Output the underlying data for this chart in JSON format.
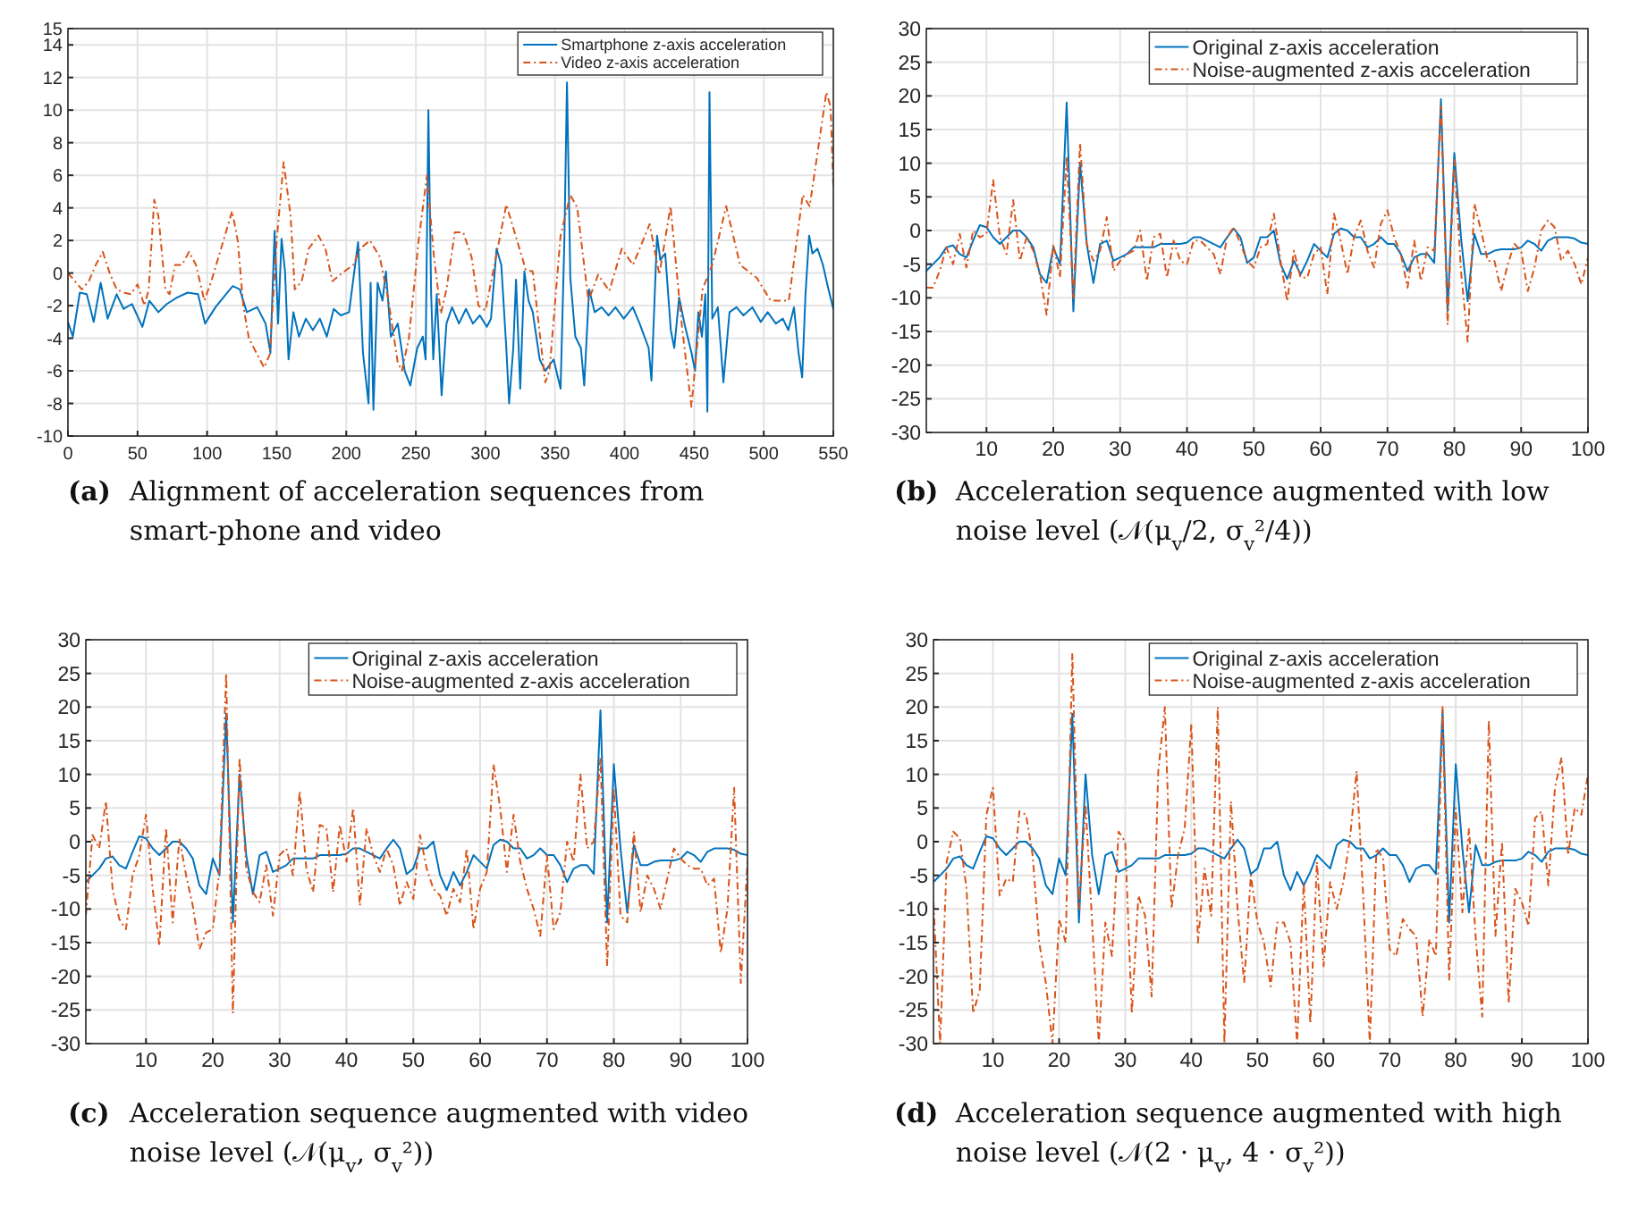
{
  "chart_data": [
    {
      "type": "line",
      "xlim": [
        0,
        550
      ],
      "xticks": [
        0,
        50,
        100,
        150,
        200,
        250,
        300,
        350,
        400,
        450,
        500,
        550
      ],
      "ylim": [
        -10,
        15
      ],
      "yticks": [
        -10,
        -8,
        -6,
        -4,
        -2,
        0,
        2,
        4,
        6,
        8,
        10,
        12,
        14,
        15
      ],
      "grid": true,
      "legend": "top right",
      "annotations": [
        "(a) Alignment of acceleration sequences from smart-phone and video"
      ],
      "series": [
        {
          "name": "Smartphone z-axis acceleration",
          "color": "#0072bd",
          "line_style": "solid",
          "x": [
            0,
            3.5,
            8.5,
            13.5,
            18.5,
            23.5,
            28.5,
            35,
            40,
            46,
            53.5,
            58.5,
            65,
            71,
            78.5,
            86,
            93.5,
            98.5,
            106,
            113.5,
            118.5,
            123.5,
            128.5,
            136,
            142,
            145.5,
            148.5,
            151,
            153.5,
            156,
            158.5,
            162,
            166,
            171,
            176,
            181,
            186,
            191,
            196,
            202,
            208.5,
            212,
            216,
            217.5,
            219.5,
            222.5,
            226,
            228.5,
            232,
            237,
            242,
            246,
            251,
            255,
            257,
            259,
            261,
            262.5,
            265,
            268.5,
            272,
            276,
            281,
            286,
            291,
            296,
            301,
            304,
            308,
            311.4,
            315,
            317,
            320,
            322,
            325,
            328,
            331,
            334,
            339,
            343,
            349,
            354,
            356.7,
            358.6,
            361,
            364.6,
            368.6,
            371,
            374.5,
            378.5,
            383.5,
            388.5,
            393.4,
            399.4,
            405.9,
            410.8,
            417.3,
            419.3,
            423.3,
            425.7,
            429.2,
            433.2,
            435.7,
            439.2,
            443,
            448.1,
            450.6,
            453,
            455.6,
            458,
            459.5,
            461,
            463,
            467,
            471,
            475.4,
            480.4,
            485.4,
            491.8,
            497.8,
            502.8,
            508.7,
            513.7,
            517.7,
            521.7,
            525,
            527.6,
            530,
            532.6,
            535,
            538.6,
            542.5,
            546.5,
            550
          ],
          "values": [
            -3,
            -3.9,
            -1.2,
            -1.3,
            -3,
            -0.6,
            -2.8,
            -1.3,
            -2.2,
            -1.9,
            -3.3,
            -1.7,
            -2.4,
            -1.9,
            -1.5,
            -1.2,
            -1.3,
            -3.1,
            -2.1,
            -1.3,
            -0.8,
            -1,
            -2.4,
            -2.1,
            -3.1,
            -4.9,
            2.6,
            -3.1,
            2.1,
            0.1,
            -5.3,
            -2.4,
            -3.9,
            -2.8,
            -3.5,
            -2.8,
            -3.9,
            -2.2,
            -2.6,
            -2.4,
            1.9,
            -4.9,
            -8,
            -0.6,
            -8.4,
            -0.6,
            -1.7,
            0.1,
            -3.9,
            -3.1,
            -6,
            -6.9,
            -4.6,
            -3.9,
            -5.3,
            10,
            -1.3,
            -5.3,
            -1.3,
            -7.5,
            -3.1,
            -2.1,
            -3.1,
            -2.2,
            -3.1,
            -2.6,
            -3.3,
            -2.8,
            1.5,
            0.5,
            -4.6,
            -8,
            -4.6,
            -0.4,
            -7.1,
            0.1,
            -1.7,
            -2.4,
            -5.3,
            -6,
            -5.3,
            -7.1,
            1.9,
            11.7,
            -0.3,
            -3.9,
            -4.6,
            -6.9,
            -1,
            -2.4,
            -2.1,
            -2.6,
            -2.1,
            -2.8,
            -2.1,
            -3.1,
            -4.6,
            -6.6,
            2.3,
            0.8,
            1.2,
            -3.5,
            -4.6,
            -1.5,
            -3.1,
            -4.9,
            -6,
            -2.4,
            -3.9,
            -1.3,
            -8.5,
            11.1,
            -2.8,
            -2.1,
            -6.7,
            -2.4,
            -2.1,
            -2.6,
            -2.1,
            -3,
            -2.4,
            -3.1,
            -2.8,
            -3.5,
            -2.1,
            -4.9,
            -6.4,
            -1.3,
            2.3,
            1.2,
            1.5,
            0.5,
            -1,
            -2.2
          ]
        },
        {
          "name": "Video z-axis acceleration",
          "color": "#d95319",
          "line_style": "dashed",
          "x": [
            0,
            5,
            10,
            15,
            20,
            25,
            30,
            35,
            40,
            45,
            50,
            55,
            58,
            62,
            65,
            70,
            73,
            77,
            82,
            87,
            92,
            98,
            103,
            110,
            118,
            122,
            126,
            130,
            136,
            141,
            145,
            150,
            155,
            160,
            163,
            168,
            173,
            180,
            185,
            190,
            197,
            205,
            210,
            217,
            224,
            230,
            237,
            240,
            245,
            252,
            258,
            263,
            268,
            272,
            278,
            284,
            290,
            295,
            300,
            315,
            329,
            334,
            343,
            346,
            354,
            361,
            366,
            374,
            381,
            389,
            398,
            406,
            418,
            425,
            433,
            441,
            448,
            456,
            463,
            473,
            483,
            495,
            505,
            518,
            528,
            533,
            538,
            545,
            548,
            550
          ],
          "values": [
            0,
            -0.5,
            -1,
            -0.5,
            0.5,
            1.3,
            0,
            -1,
            -1.2,
            -1.3,
            -0.7,
            -2,
            -1,
            4.5,
            3.5,
            -1,
            -1.3,
            0.5,
            0.5,
            1.3,
            0.5,
            -1.7,
            -0.5,
            1.5,
            3.8,
            2,
            -2,
            -4,
            -5,
            -5.8,
            -5,
            2,
            6.8,
            3.5,
            -1,
            -0.5,
            1.5,
            2.3,
            1.5,
            -0.5,
            0,
            0.5,
            1.5,
            2,
            1,
            -1.5,
            -5.5,
            -6,
            -4,
            2,
            6,
            1,
            -2.5,
            -1,
            2.5,
            2.5,
            1,
            -2,
            -2.3,
            4.2,
            0.2,
            0.1,
            -6.7,
            -6,
            2.3,
            4.8,
            4,
            -1.7,
            -0.1,
            -1.1,
            1.5,
            0.5,
            3,
            -0.1,
            4.1,
            -3.1,
            -8.2,
            -1,
            0.5,
            4.1,
            0.5,
            -0.3,
            -1.7,
            -1.7,
            4.8,
            4.1,
            7,
            11.1,
            10.2,
            5.3
          ]
        }
      ]
    },
    {
      "type": "line",
      "x": [
        1,
        2,
        3,
        4,
        5,
        6,
        7,
        8,
        9,
        10,
        11,
        12,
        13,
        14,
        15,
        16,
        17,
        18,
        19,
        20,
        21,
        22,
        23,
        24,
        25,
        26,
        27,
        28,
        29,
        30,
        31,
        32,
        33,
        34,
        35,
        36,
        37,
        38,
        39,
        40,
        41,
        42,
        43,
        44,
        45,
        46,
        47,
        48,
        49,
        50,
        51,
        52,
        53,
        54,
        55,
        56,
        57,
        58,
        59,
        60,
        61,
        62,
        63,
        64,
        65,
        66,
        67,
        68,
        69,
        70,
        71,
        72,
        73,
        74,
        75,
        76,
        77,
        78,
        79,
        80,
        81,
        82,
        83,
        84,
        85,
        86,
        87,
        88,
        89,
        90,
        91,
        92,
        93,
        94,
        95,
        96,
        97,
        98,
        99,
        100
      ],
      "xlim": [
        1,
        100
      ],
      "xticks": [
        10,
        20,
        30,
        40,
        50,
        60,
        70,
        80,
        90,
        100
      ],
      "ylim": [
        -30,
        30
      ],
      "yticks": [
        -30,
        -25,
        -20,
        -15,
        -10,
        -5,
        0,
        5,
        10,
        15,
        20,
        25,
        30
      ],
      "grid": true,
      "legend": "top right",
      "annotations": [
        "(b) Acceleration sequence augmented with low noise level (𝒩(μ$_{v}$/2, σ$_{v}$²/4))"
      ],
      "series": [
        {
          "name": "Original z-axis acceleration",
          "color": "#0072bd",
          "line_style": "solid",
          "values": [
            -6,
            -5,
            -4,
            -2.5,
            -2.2,
            -3.5,
            -4,
            -1.5,
            0.8,
            0.5,
            -1,
            -2,
            -1,
            0,
            0,
            -1,
            -2.5,
            -6.5,
            -7.8,
            -2.5,
            -5,
            19,
            -12,
            10,
            -2,
            -7.8,
            -2,
            -1.5,
            -4.5,
            -4,
            -3.5,
            -2.5,
            -2.5,
            -2.5,
            -2.5,
            -2,
            -2,
            -2,
            -2,
            -1.8,
            -1,
            -1,
            -1.5,
            -2,
            -2.5,
            -1,
            0.3,
            -1,
            -4.8,
            -4,
            -1,
            -1,
            0,
            -5,
            -7.2,
            -4.5,
            -6.5,
            -4.5,
            -2,
            -3,
            -4,
            -0.5,
            0.3,
            0,
            -1,
            -1,
            -2.5,
            -2,
            -1,
            -2,
            -2,
            -3.5,
            -6,
            -4,
            -3.5,
            -3.5,
            -4.8,
            19.5,
            -12,
            11.5,
            -1,
            -10.5,
            -0.5,
            -3.5,
            -3.5,
            -3,
            -2.8,
            -2.8,
            -2.8,
            -2.5,
            -1.5,
            -2,
            -3,
            -1.5,
            -1,
            -1,
            -1,
            -1.2,
            -1.8,
            -2
          ]
        },
        {
          "name": "Noise-augmented z-axis acceleration",
          "color": "#d95319",
          "line_style": "dashed",
          "values": [
            -8.5,
            -8.5,
            -6,
            -2.5,
            -5,
            -0.5,
            -5.5,
            0,
            -1,
            -0.5,
            7.5,
            -1,
            -3.5,
            4.5,
            -4.5,
            -1,
            -3,
            -6.5,
            -12.5,
            -2,
            -7,
            11,
            -10,
            13,
            -2,
            -4.5,
            -3,
            2,
            -6,
            -4.5,
            -3.5,
            -3,
            0,
            -7.5,
            -1,
            -0.5,
            -7,
            -1.5,
            -4.5,
            -5,
            -1.5,
            -1.5,
            -2.5,
            -3.5,
            -6.5,
            -1,
            0.5,
            -2,
            -4.5,
            -5.5,
            -2.5,
            -2,
            2.5,
            -4.5,
            -10.5,
            -3,
            -7,
            -7,
            -3.5,
            -2.5,
            -9.5,
            2.5,
            -1.5,
            -6.5,
            -1,
            1.5,
            -3,
            -5.5,
            1,
            3,
            -1,
            -3.5,
            -8.5,
            -1.5,
            -7.5,
            -2.5,
            -3,
            18.5,
            -14,
            10.5,
            -6,
            -16.5,
            4,
            0,
            -4.5,
            -4.5,
            -9,
            -5,
            -2,
            -3,
            -9,
            -5.5,
            0,
            1.5,
            0.5,
            -4.5,
            -3,
            -5,
            -8,
            -4
          ]
        }
      ]
    },
    {
      "type": "line",
      "x": [
        1,
        2,
        3,
        4,
        5,
        6,
        7,
        8,
        9,
        10,
        11,
        12,
        13,
        14,
        15,
        16,
        17,
        18,
        19,
        20,
        21,
        22,
        23,
        24,
        25,
        26,
        27,
        28,
        29,
        30,
        31,
        32,
        33,
        34,
        35,
        36,
        37,
        38,
        39,
        40,
        41,
        42,
        43,
        44,
        45,
        46,
        47,
        48,
        49,
        50,
        51,
        52,
        53,
        54,
        55,
        56,
        57,
        58,
        59,
        60,
        61,
        62,
        63,
        64,
        65,
        66,
        67,
        68,
        69,
        70,
        71,
        72,
        73,
        74,
        75,
        76,
        77,
        78,
        79,
        80,
        81,
        82,
        83,
        84,
        85,
        86,
        87,
        88,
        89,
        90,
        91,
        92,
        93,
        94,
        95,
        96,
        97,
        98,
        99,
        100
      ],
      "xlim": [
        1,
        100
      ],
      "xticks": [
        10,
        20,
        30,
        40,
        50,
        60,
        70,
        80,
        90,
        100
      ],
      "ylim": [
        -30,
        30
      ],
      "yticks": [
        -30,
        -25,
        -20,
        -15,
        -10,
        -5,
        0,
        5,
        10,
        15,
        20,
        25,
        30
      ],
      "grid": true,
      "legend": "top right",
      "annotations": [
        "(c) Acceleration sequence augmented with video noise level (𝒩(μ$_{v}$, σ$_{v}$²))"
      ],
      "series": [
        {
          "name": "Original z-axis acceleration",
          "color": "#0072bd",
          "line_style": "solid",
          "values": [
            -6,
            -5,
            -4,
            -2.5,
            -2.2,
            -3.5,
            -4,
            -1.5,
            0.8,
            0.5,
            -1,
            -2,
            -1,
            0,
            0,
            -1,
            -2.5,
            -6.5,
            -7.8,
            -2.5,
            -5,
            19,
            -12,
            10,
            -2,
            -7.8,
            -2,
            -1.5,
            -4.5,
            -4,
            -3.5,
            -2.5,
            -2.5,
            -2.5,
            -2.5,
            -2,
            -2,
            -2,
            -2,
            -1.8,
            -1,
            -1,
            -1.5,
            -2,
            -2.5,
            -1,
            0.3,
            -1,
            -4.8,
            -4,
            -1,
            -1,
            0,
            -5,
            -7.2,
            -4.5,
            -6.5,
            -4.5,
            -2,
            -3,
            -4,
            -0.5,
            0.3,
            0,
            -1,
            -1,
            -2.5,
            -2,
            -1,
            -2,
            -2,
            -3.5,
            -6,
            -4,
            -3.5,
            -3.5,
            -4.8,
            19.5,
            -12,
            11.5,
            -1,
            -10.5,
            -0.5,
            -3.5,
            -3.5,
            -3,
            -2.8,
            -2.8,
            -2.8,
            -2.5,
            -1.5,
            -2,
            -3,
            -1.5,
            -1,
            -1,
            -1,
            -1.2,
            -1.8,
            -2
          ]
        },
        {
          "name": "Noise-augmented z-axis acceleration",
          "color": "#d95319",
          "line_style": "dashed",
          "values": [
            -11,
            1,
            -1,
            6,
            -7,
            -11.5,
            -13,
            -5,
            -2,
            4,
            -7,
            -15.5,
            2,
            -12,
            0.5,
            -5,
            -9.5,
            -16,
            -13.5,
            -13,
            -4,
            25,
            -25.5,
            12.5,
            -4,
            -7.5,
            -9,
            -3.5,
            -11,
            -2,
            -1,
            -5,
            7.5,
            -4,
            -7.5,
            2.5,
            2,
            -7.5,
            2.5,
            -3,
            5,
            -9.5,
            2,
            -2,
            -4.5,
            -1,
            -3.5,
            -9.5,
            -6,
            -8.5,
            1,
            -4,
            -7,
            -8,
            -11,
            -7,
            -9,
            -1,
            -13,
            -7,
            -4.5,
            11.5,
            5,
            -4.5,
            4,
            -3,
            -7,
            -10,
            -14,
            -2,
            -13,
            -10.5,
            0,
            -3,
            10,
            -1,
            0,
            12.5,
            -18.5,
            8,
            -11,
            -12,
            1.5,
            -10.5,
            -5,
            -7,
            -10,
            -5.5,
            -1,
            -2.5,
            -3.5,
            -4,
            -4,
            -6.5,
            -5.5,
            -16.5,
            -10,
            8,
            -21,
            -3
          ]
        }
      ]
    },
    {
      "type": "line",
      "x": [
        1,
        2,
        3,
        4,
        5,
        6,
        7,
        8,
        9,
        10,
        11,
        12,
        13,
        14,
        15,
        16,
        17,
        18,
        19,
        20,
        21,
        22,
        23,
        24,
        25,
        26,
        27,
        28,
        29,
        30,
        31,
        32,
        33,
        34,
        35,
        36,
        37,
        38,
        39,
        40,
        41,
        42,
        43,
        44,
        45,
        46,
        47,
        48,
        49,
        50,
        51,
        52,
        53,
        54,
        55,
        56,
        57,
        58,
        59,
        60,
        61,
        62,
        63,
        64,
        65,
        66,
        67,
        68,
        69,
        70,
        71,
        72,
        73,
        74,
        75,
        76,
        77,
        78,
        79,
        80,
        81,
        82,
        83,
        84,
        85,
        86,
        87,
        88,
        89,
        90,
        91,
        92,
        93,
        94,
        95,
        96,
        97,
        98,
        99,
        100
      ],
      "xlim": [
        1,
        100
      ],
      "xticks": [
        10,
        20,
        30,
        40,
        50,
        60,
        70,
        80,
        90,
        100
      ],
      "ylim": [
        -30,
        30
      ],
      "yticks": [
        -30,
        -25,
        -20,
        -15,
        -10,
        -5,
        0,
        5,
        10,
        15,
        20,
        25,
        30
      ],
      "grid": true,
      "legend": "top right",
      "annotations": [
        "(d) Acceleration sequence augmented with high noise level (𝒩(2 · μ$_{v}$, 4 · σ$_{v}$²))"
      ],
      "series": [
        {
          "name": "Original z-axis acceleration",
          "color": "#0072bd",
          "line_style": "solid",
          "values": [
            -6,
            -5,
            -4,
            -2.5,
            -2.2,
            -3.5,
            -4,
            -1.5,
            0.8,
            0.5,
            -1,
            -2,
            -1,
            0,
            0,
            -1,
            -2.5,
            -6.5,
            -7.8,
            -2.5,
            -5,
            19,
            -12,
            10,
            -2,
            -7.8,
            -2,
            -1.5,
            -4.5,
            -4,
            -3.5,
            -2.5,
            -2.5,
            -2.5,
            -2.5,
            -2,
            -2,
            -2,
            -2,
            -1.8,
            -1,
            -1,
            -1.5,
            -2,
            -2.5,
            -1,
            0.3,
            -1,
            -4.8,
            -4,
            -1,
            -1,
            0,
            -5,
            -7.2,
            -4.5,
            -6.5,
            -4.5,
            -2,
            -3,
            -4,
            -0.5,
            0.3,
            0,
            -1,
            -1,
            -2.5,
            -2,
            -1,
            -2,
            -2,
            -3.5,
            -6,
            -4,
            -3.5,
            -3.5,
            -4.8,
            19.5,
            -12,
            11.5,
            -1,
            -10.5,
            -0.5,
            -3.5,
            -3.5,
            -3,
            -2.8,
            -2.8,
            -2.8,
            -2.5,
            -1.5,
            -2,
            -3,
            -1.5,
            -1,
            -1,
            -1,
            -1.2,
            -1.8,
            -2
          ]
        },
        {
          "name": "Noise-augmented z-axis acceleration",
          "color": "#d95319",
          "line_style": "dashed",
          "values": [
            -9,
            -30,
            -3,
            1.5,
            0.5,
            -7,
            -25.5,
            -22,
            4,
            8,
            -8,
            -5.5,
            -6,
            4.5,
            4,
            -2,
            -15,
            -21,
            -30,
            -11.5,
            -15,
            28,
            -10,
            5.5,
            -12,
            -30,
            -12,
            -17,
            1.5,
            0,
            -25.5,
            -8,
            -11,
            -23,
            10.5,
            20,
            -10,
            -2,
            2,
            17.5,
            -15,
            -4,
            -11,
            20,
            -30,
            6,
            -10,
            -21,
            -5,
            -12,
            -15,
            -21.5,
            -12,
            -12,
            -15,
            -30,
            -6,
            -27,
            -3,
            -18.5,
            -6,
            -10,
            -6,
            0.5,
            10.5,
            -8,
            -30,
            -1,
            -2.5,
            -16,
            -17,
            -11.5,
            -13,
            -14,
            -26,
            -14.5,
            -17,
            20,
            -20.5,
            5,
            -10.5,
            2,
            -14,
            -26,
            18,
            -14,
            0,
            -24,
            -7,
            -9,
            -12.5,
            3.5,
            4.5,
            -6.5,
            8,
            12.5,
            -2,
            5,
            4,
            10
          ]
        }
      ]
    }
  ]
}
